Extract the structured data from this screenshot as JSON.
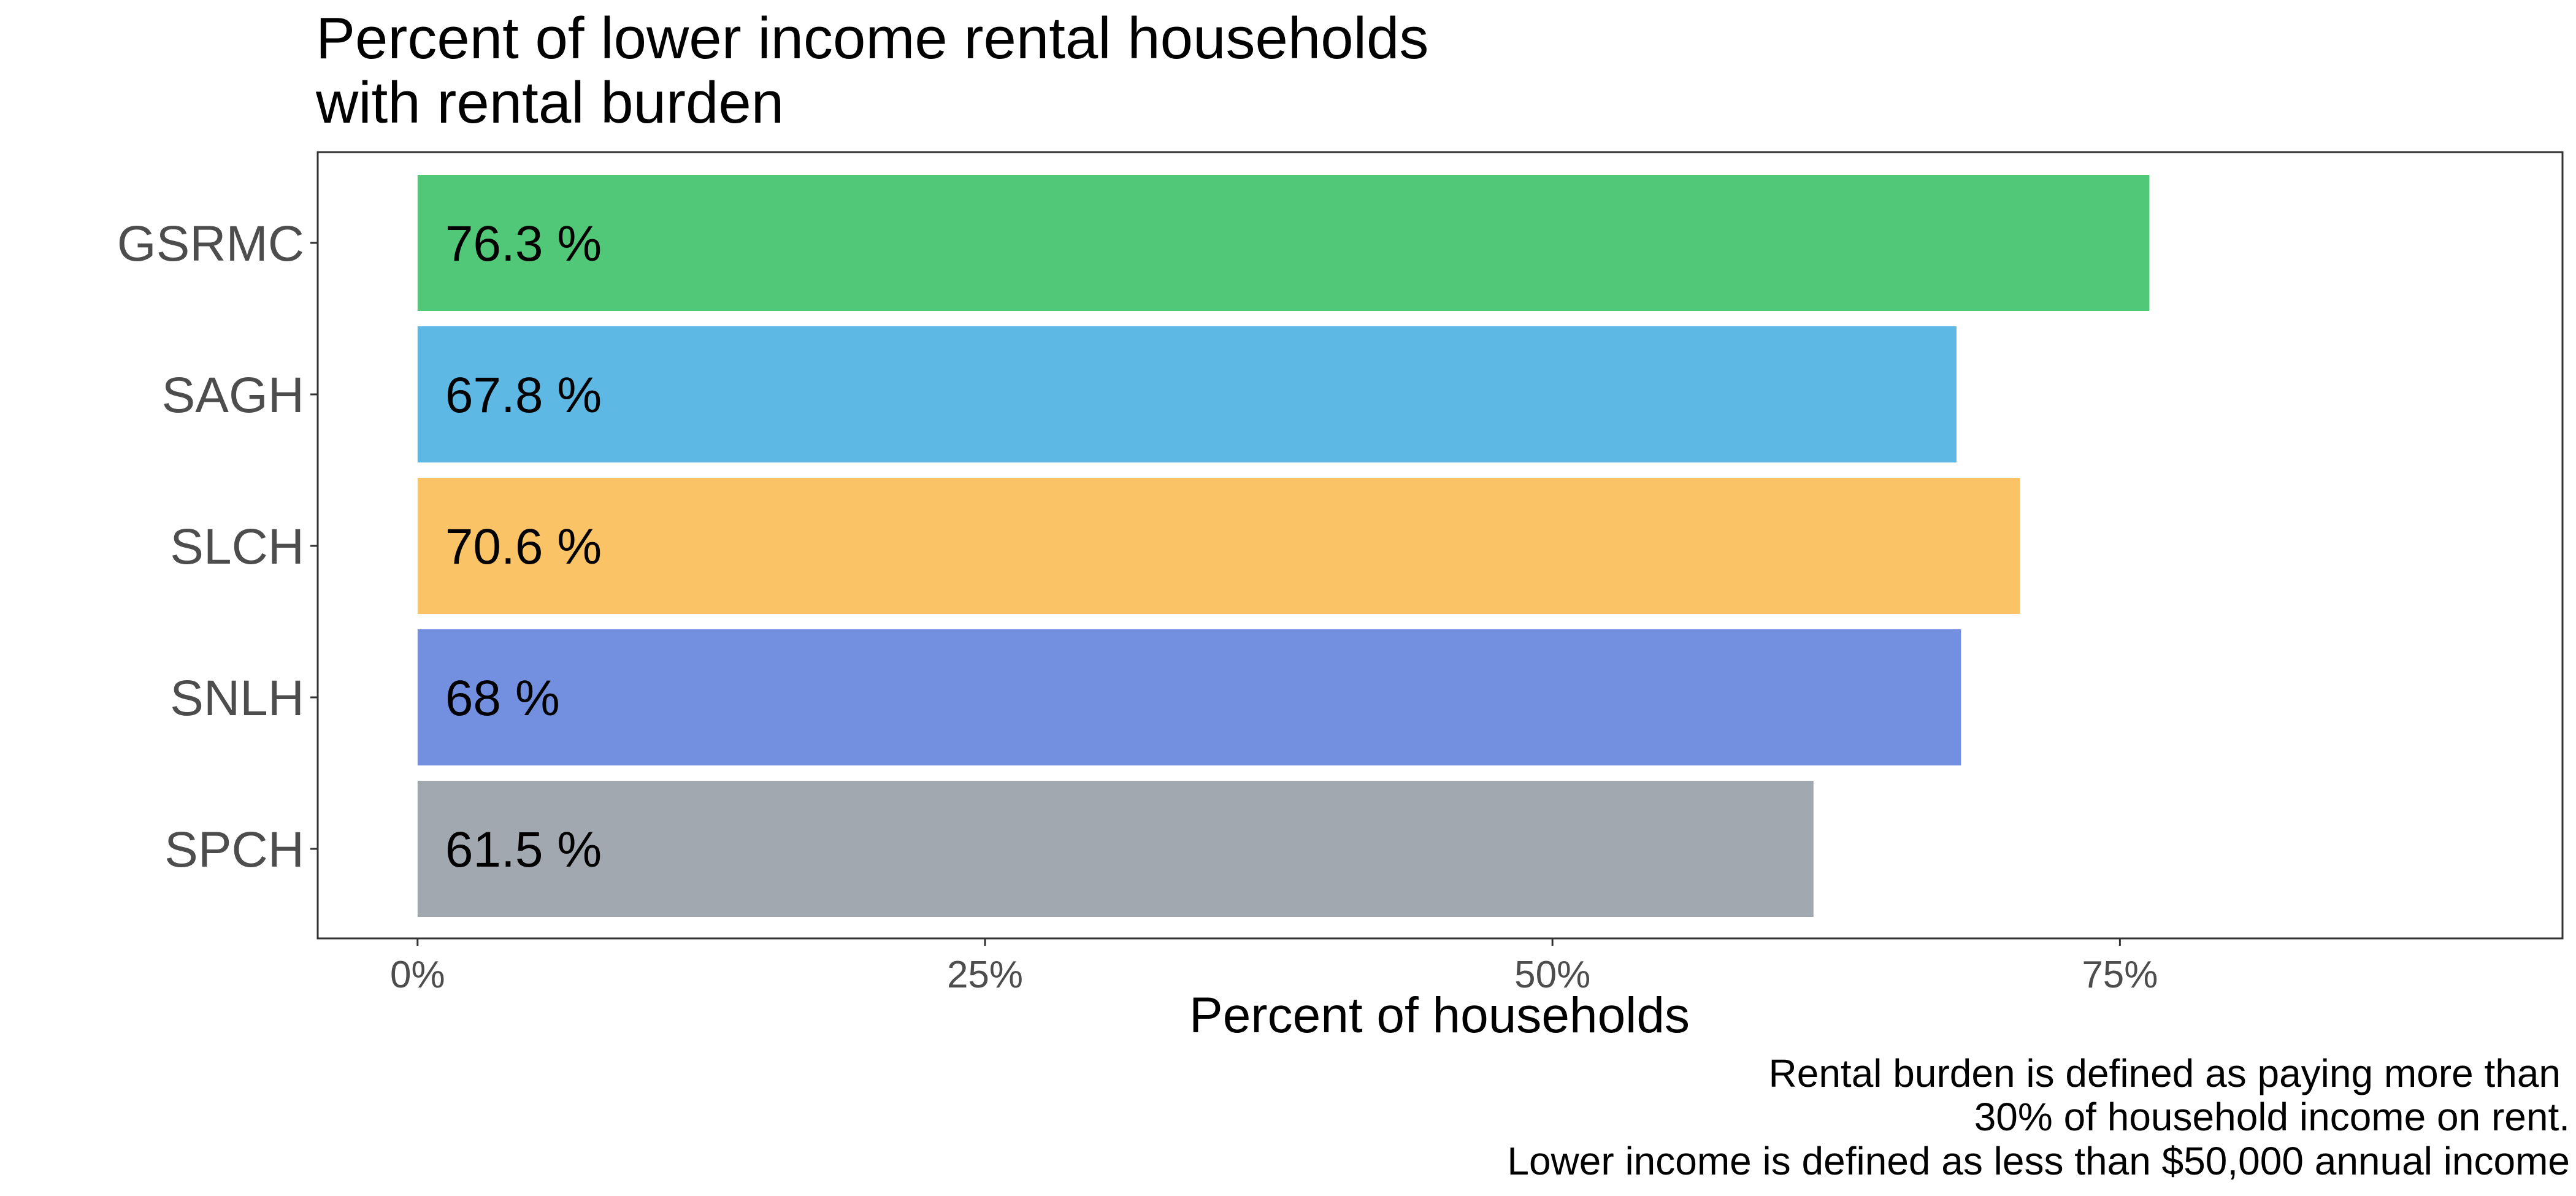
{
  "chart_data": {
    "type": "bar",
    "orientation": "horizontal",
    "title_lines": [
      "Percent of lower income rental households",
      "with rental burden"
    ],
    "xlabel": "Percent of households",
    "ylabel": "",
    "categories": [
      "GSRMC",
      "SAGH",
      "SLCH",
      "SNLH",
      "SPCH"
    ],
    "values": [
      76.3,
      67.8,
      70.6,
      68,
      61.5
    ],
    "data_labels": [
      "76.3 %",
      "67.8 %",
      "70.6 %",
      "68 %",
      "61.5 %"
    ],
    "colors": [
      "#50c878",
      "#5db8e4",
      "#f9c366",
      "#7390e0",
      "#a1a8b0"
    ],
    "xlim": [
      -4.4,
      94.5
    ],
    "x_ticks": [
      0,
      25,
      50,
      75
    ],
    "x_tick_labels": [
      "0%",
      "25%",
      "50%",
      "75%"
    ],
    "grid": false,
    "legend": "none",
    "caption_lines": [
      "Rental burden is defined as paying more than",
      "30% of household income on rent.",
      "Lower income is defined as less than $50,000 annual income"
    ]
  }
}
